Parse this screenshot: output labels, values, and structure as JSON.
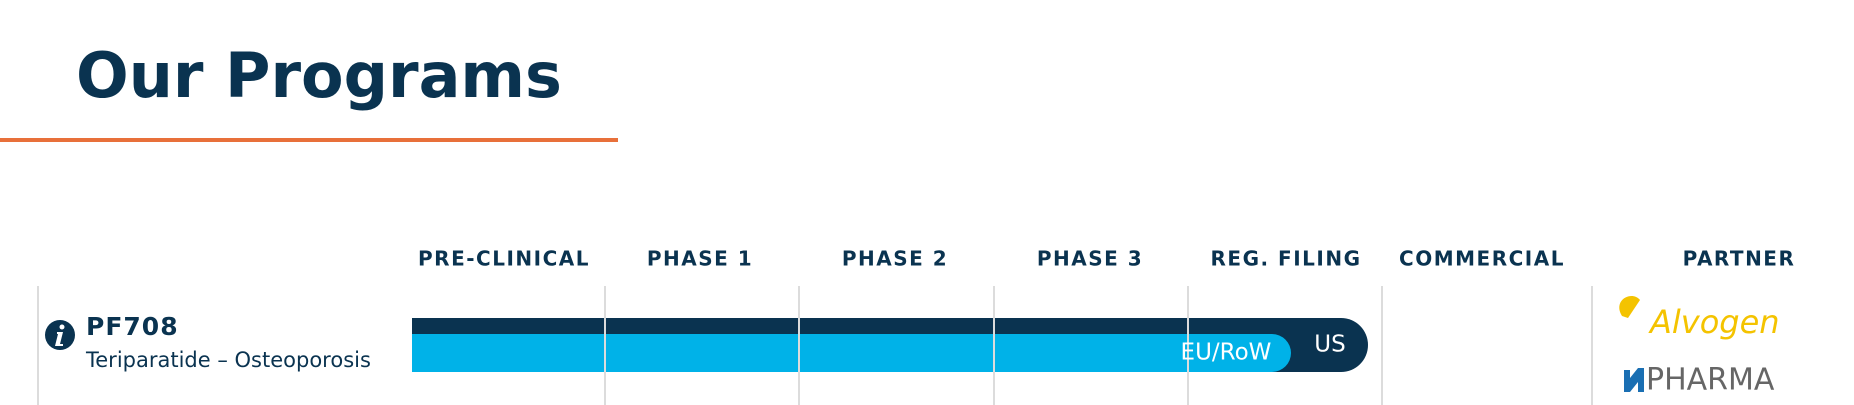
{
  "header": {
    "title": "Our Programs"
  },
  "columns": [
    "PRE-CLINICAL",
    "PHASE 1",
    "PHASE 2",
    "PHASE 3",
    "REG. FILING",
    "COMMERCIAL",
    "PARTNER"
  ],
  "programs": [
    {
      "name": "PF708",
      "indication": "Teriparatide – Osteoporosis",
      "bars": [
        {
          "label": "US"
        },
        {
          "label": "EU/RoW"
        }
      ],
      "partners": [
        "Alvogen",
        "PHARMA"
      ]
    }
  ]
}
